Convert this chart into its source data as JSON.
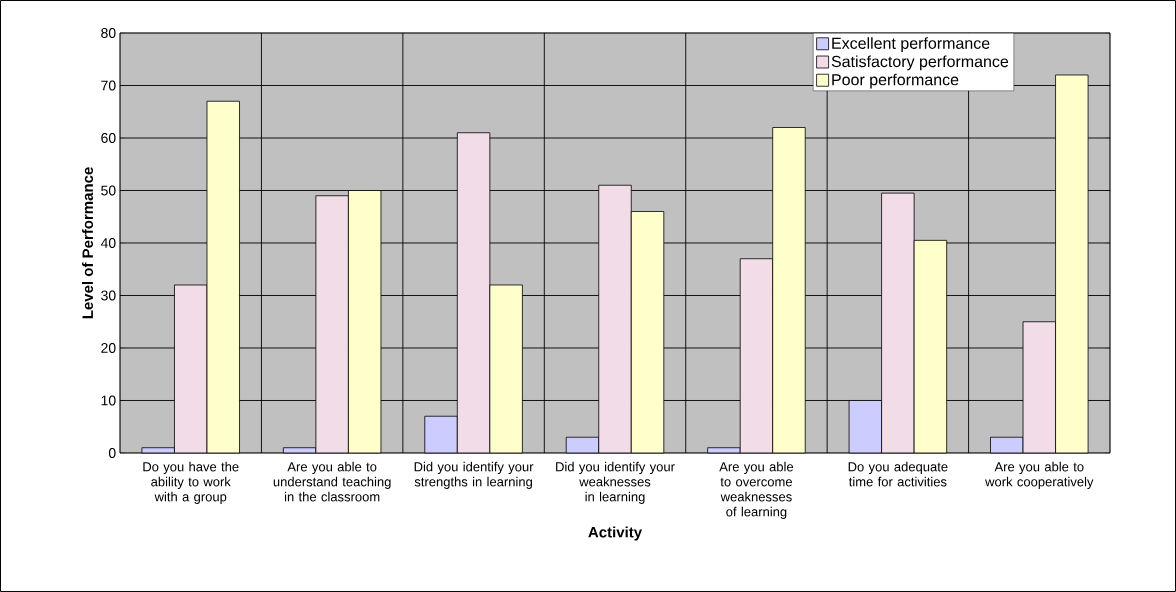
{
  "chart_data": {
    "type": "bar",
    "xlabel": "Activity",
    "ylabel": "Level of Performance",
    "categories": [
      "Do you have the ability to work with a group",
      "Are you able to understand teaching in the classroom",
      "Did you identify your strengths in learning",
      "Did you identify your weaknesses in learning",
      "Are you able to overcome weaknesses of learning",
      "Do you adequate time for activities",
      "Are you able to work cooperatively"
    ],
    "series": [
      {
        "name": "Excellent performance",
        "color": "#ccccff",
        "values": [
          1,
          1,
          7,
          3,
          1,
          10,
          3
        ]
      },
      {
        "name": "Satisfactory performance",
        "color": "#f2dce8",
        "values": [
          32,
          49,
          61,
          51,
          37,
          49.5,
          25
        ]
      },
      {
        "name": "Poor performance",
        "color": "#ffffcc",
        "values": [
          67,
          50,
          32,
          46,
          62,
          40.5,
          72
        ]
      }
    ],
    "ylim": [
      0,
      80
    ],
    "yticks": [
      0,
      10,
      20,
      30,
      40,
      50,
      60,
      70,
      80
    ],
    "grid": true,
    "legend": "top right"
  }
}
